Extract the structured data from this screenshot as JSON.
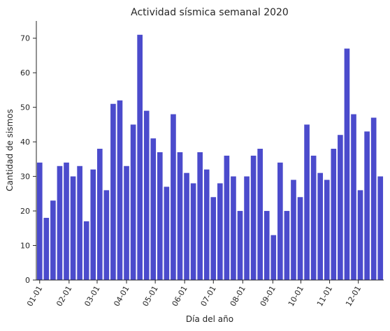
{
  "chart_data": {
    "type": "bar",
    "title": "Actividad sísmica semanal 2020",
    "xlabel": "Día del año",
    "ylabel": "Cantidad de sismos",
    "ylim": [
      0,
      75
    ],
    "yticks": [
      0,
      10,
      20,
      30,
      40,
      50,
      60,
      70
    ],
    "x_tick_labels": [
      "01-01",
      "02-01",
      "03-01",
      "04-01",
      "05-01",
      "06-01",
      "07-01",
      "08-01",
      "09-01",
      "10-01",
      "11-01",
      "12-01"
    ],
    "x_tick_positions": [
      0,
      4.4,
      8.6,
      13,
      17.3,
      21.7,
      26,
      30.4,
      34.9,
      39.1,
      43.4,
      47.7
    ],
    "values": [
      34,
      18,
      23,
      33,
      34,
      30,
      33,
      17,
      32,
      38,
      26,
      51,
      52,
      33,
      45,
      71,
      49,
      41,
      37,
      27,
      48,
      37,
      31,
      28,
      37,
      32,
      24,
      28,
      36,
      30,
      20,
      30,
      36,
      38,
      20,
      13,
      34,
      20,
      29,
      24,
      45,
      36,
      31,
      29,
      38,
      42,
      67,
      48,
      26,
      43,
      47,
      30
    ],
    "bar_color": "#4b4bcc",
    "grid": false,
    "legend": "none"
  }
}
